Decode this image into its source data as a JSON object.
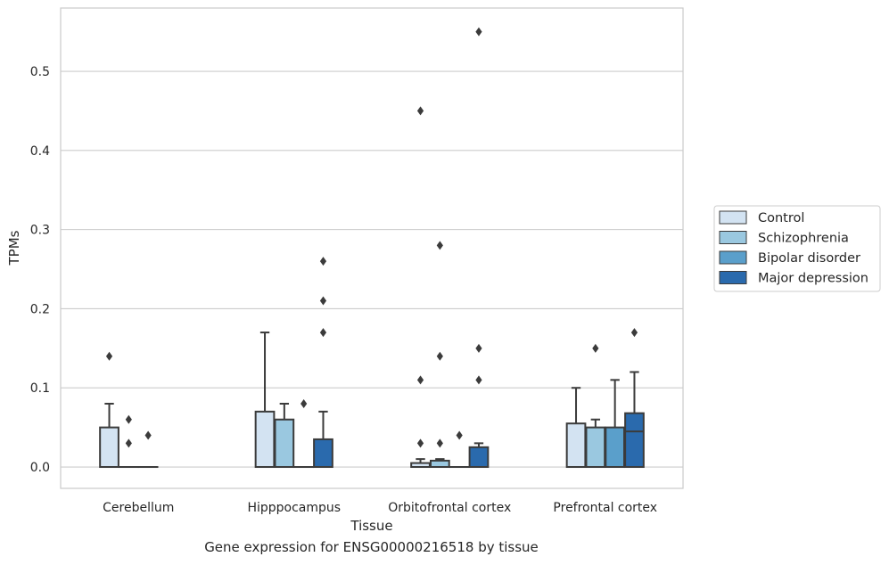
{
  "caption": "Gene expression for ENSG00000216518 by tissue",
  "chart_data": {
    "type": "box",
    "xlabel": "Tissue",
    "ylabel": "TPMs",
    "ylim": [
      -0.027,
      0.58
    ],
    "yticks": [
      0.0,
      0.1,
      0.2,
      0.3,
      0.4,
      0.5
    ],
    "ytick_labels": [
      "0.0",
      "0.1",
      "0.2",
      "0.3",
      "0.4",
      "0.5"
    ],
    "grid": true,
    "legend_position": "right",
    "categories": [
      "Cerebellum",
      "Hipppocampus",
      "Orbitofrontal cortex",
      "Prefrontal cortex"
    ],
    "series": [
      {
        "name": "Control",
        "color": "#d3e3f2",
        "boxes": [
          {
            "q1": 0.0,
            "median": 0.0,
            "q3": 0.05,
            "whislo": 0.0,
            "whishi": 0.08,
            "fliers": [
              0.14
            ]
          },
          {
            "q1": 0.0,
            "median": 0.0,
            "q3": 0.07,
            "whislo": 0.0,
            "whishi": 0.17,
            "fliers": []
          },
          {
            "q1": 0.0,
            "median": 0.0,
            "q3": 0.005,
            "whislo": 0.0,
            "whishi": 0.01,
            "fliers": [
              0.45,
              0.11,
              0.03
            ]
          },
          {
            "q1": 0.0,
            "median": 0.0,
            "q3": 0.055,
            "whislo": 0.0,
            "whishi": 0.1,
            "fliers": []
          }
        ]
      },
      {
        "name": "Schizophrenia",
        "color": "#9ac8e0",
        "boxes": [
          {
            "q1": 0.0,
            "median": 0.0,
            "q3": 0.0,
            "whislo": 0.0,
            "whishi": 0.0,
            "fliers": [
              0.06,
              0.03
            ]
          },
          {
            "q1": 0.0,
            "median": 0.0,
            "q3": 0.06,
            "whislo": 0.0,
            "whishi": 0.08,
            "fliers": []
          },
          {
            "q1": 0.0,
            "median": 0.0,
            "q3": 0.008,
            "whislo": 0.0,
            "whishi": 0.01,
            "fliers": [
              0.28,
              0.14,
              0.03
            ]
          },
          {
            "q1": 0.0,
            "median": 0.0,
            "q3": 0.05,
            "whislo": 0.0,
            "whishi": 0.06,
            "fliers": [
              0.15
            ]
          }
        ]
      },
      {
        "name": "Bipolar disorder",
        "color": "#5a9fcb",
        "boxes": [
          {
            "q1": 0.0,
            "median": 0.0,
            "q3": 0.0,
            "whislo": 0.0,
            "whishi": 0.0,
            "fliers": [
              0.04
            ]
          },
          {
            "q1": 0.0,
            "median": 0.0,
            "q3": 0.0,
            "whislo": 0.0,
            "whishi": 0.0,
            "fliers": [
              0.08
            ]
          },
          {
            "q1": 0.0,
            "median": 0.0,
            "q3": 0.0,
            "whislo": 0.0,
            "whishi": 0.0,
            "fliers": [
              0.04
            ]
          },
          {
            "q1": 0.0,
            "median": 0.0,
            "q3": 0.05,
            "whislo": 0.0,
            "whishi": 0.11,
            "fliers": []
          }
        ]
      },
      {
        "name": "Major depression",
        "color": "#2a6aad",
        "boxes": [
          null,
          {
            "q1": 0.0,
            "median": 0.0,
            "q3": 0.035,
            "whislo": 0.0,
            "whishi": 0.07,
            "fliers": [
              0.26,
              0.21,
              0.17
            ]
          },
          {
            "q1": 0.0,
            "median": 0.0,
            "q3": 0.025,
            "whislo": 0.0,
            "whishi": 0.03,
            "fliers": [
              0.55,
              0.15,
              0.11
            ]
          },
          {
            "q1": 0.0,
            "median": 0.045,
            "q3": 0.068,
            "whislo": 0.0,
            "whishi": 0.12,
            "fliers": [
              0.17
            ]
          }
        ]
      }
    ]
  }
}
